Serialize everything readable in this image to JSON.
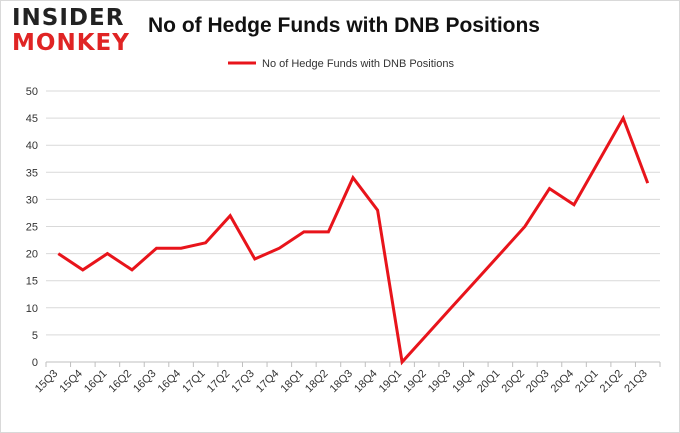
{
  "logo": {
    "top": "INSIDER",
    "bottom": "MONKEY"
  },
  "chart_data": {
    "type": "line",
    "title": "No of Hedge Funds with DNB Positions",
    "categories": [
      "15Q3",
      "15Q4",
      "16Q1",
      "16Q2",
      "16Q3",
      "16Q4",
      "17Q1",
      "17Q2",
      "17Q3",
      "17Q4",
      "18Q1",
      "18Q2",
      "18Q3",
      "18Q4",
      "19Q1",
      "19Q2",
      "19Q3",
      "19Q4",
      "20Q1",
      "20Q2",
      "20Q3",
      "20Q4",
      "21Q1",
      "21Q2",
      "21Q3"
    ],
    "series": [
      {
        "name": "No of Hedge Funds with DNB Positions",
        "color": "#e8141b",
        "values": [
          20,
          17,
          20,
          17,
          21,
          21,
          22,
          27,
          19,
          21,
          24,
          24,
          34,
          28,
          0,
          5,
          10,
          15,
          20,
          25,
          32,
          29,
          null,
          45,
          33
        ]
      }
    ],
    "ylim": [
      0,
      50
    ],
    "yticks": [
      0,
      5,
      10,
      15,
      20,
      25,
      30,
      35,
      40,
      45,
      50
    ],
    "grid": true,
    "legend": "top-center",
    "xlabel": "",
    "ylabel": ""
  }
}
